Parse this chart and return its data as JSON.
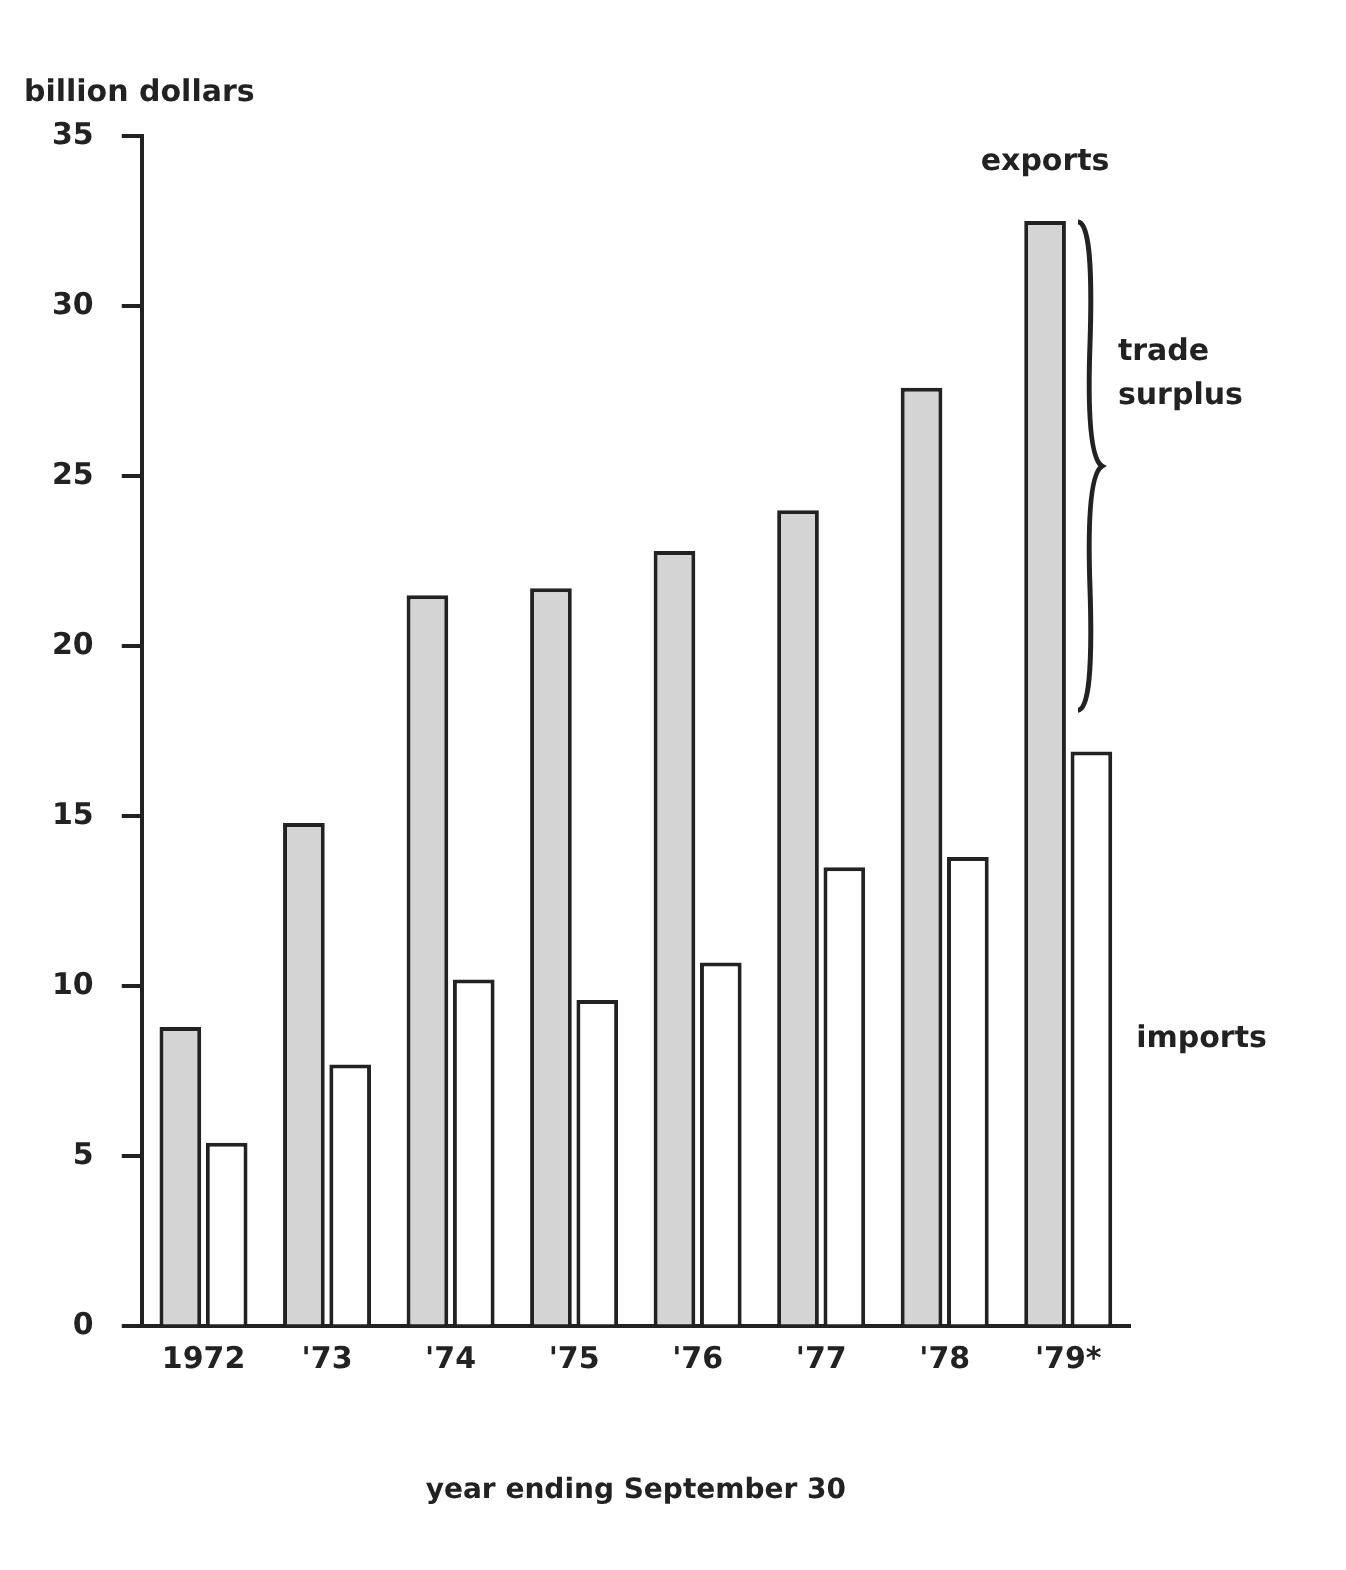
{
  "chart_data": {
    "type": "bar",
    "ylabel": "billion dollars",
    "xlabel": "year ending September 30",
    "categories": [
      "1972",
      "'73",
      "'74",
      "'75",
      "'76",
      "'77",
      "'78",
      "'79*"
    ],
    "series": [
      {
        "name": "exports",
        "color": "#d4d4d4",
        "values": [
          8.8,
          14.8,
          21.5,
          21.7,
          22.8,
          24.0,
          27.6,
          32.5
        ]
      },
      {
        "name": "imports",
        "color": "#ffffff",
        "values": [
          5.4,
          7.7,
          10.2,
          9.6,
          10.7,
          13.5,
          13.8,
          16.9
        ]
      }
    ],
    "annotations": [
      "trade surplus"
    ],
    "ylim": [
      0,
      35
    ],
    "yticks": [
      0,
      5,
      10,
      15,
      20,
      25,
      30,
      35
    ],
    "grid": false,
    "legend": false
  }
}
